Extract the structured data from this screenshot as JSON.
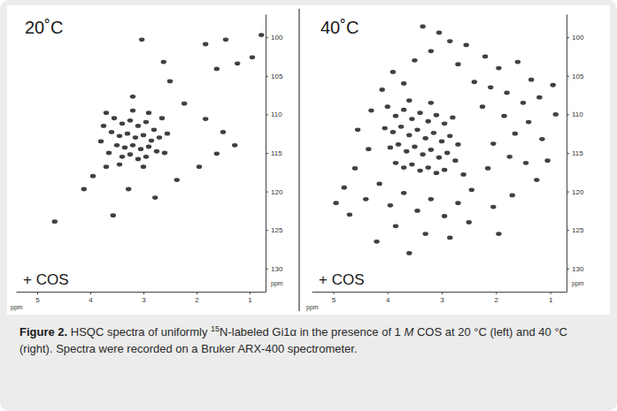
{
  "chart_data": [
    {
      "type": "scatter",
      "title": "20˚C",
      "annotations": [
        "+ COS"
      ],
      "x_label": "ppm",
      "y_label": "ppm",
      "x": [
        3.03,
        2.62,
        1.83,
        1.45,
        1.23,
        0.95,
        0.78,
        1.62,
        2.5,
        3.2,
        2.23,
        1.83,
        1.5,
        1.28,
        1.62,
        3.95,
        4.12,
        3.7,
        3.28,
        2.78,
        3.57,
        4.67,
        2.37,
        1.95,
        3.55,
        3.4,
        3.25,
        3.1,
        2.95,
        2.8,
        3.6,
        3.45,
        3.3,
        3.15,
        3.0,
        2.85,
        2.7,
        3.5,
        3.35,
        3.2,
        3.05,
        2.9,
        2.75,
        3.65,
        3.4,
        3.25,
        3.1,
        2.95,
        2.6,
        3.8,
        3.75,
        2.55,
        3.2,
        2.9,
        3.45,
        3.0,
        2.65,
        3.7
      ],
      "values": [
        100.3,
        103.2,
        100.9,
        100.3,
        103.4,
        102.6,
        99.7,
        104.1,
        105.7,
        107.7,
        108.6,
        110.6,
        112.3,
        114.0,
        115.1,
        118.0,
        119.7,
        116.8,
        119.7,
        120.8,
        123.1,
        123.9,
        118.5,
        116.8,
        110.5,
        111.2,
        110.8,
        111.5,
        111.0,
        112.0,
        112.3,
        112.8,
        112.5,
        113.0,
        112.7,
        113.4,
        113.0,
        114.0,
        114.3,
        114.0,
        114.5,
        114.2,
        114.8,
        115.0,
        115.5,
        115.2,
        115.8,
        115.5,
        115.0,
        113.5,
        111.5,
        112.5,
        109.5,
        109.8,
        116.5,
        116.8,
        110.5,
        109.8
      ],
      "xlim": [
        5.4,
        0.7
      ],
      "ylim": [
        97,
        133
      ],
      "xticks": [
        5,
        4,
        3,
        2,
        1
      ],
      "yticks": [
        100,
        105,
        110,
        115,
        120,
        125,
        130
      ],
      "color": "#262626",
      "marker": "ellipse"
    },
    {
      "type": "scatter",
      "title": "40˚C",
      "annotations": [
        "+ COS"
      ],
      "x_label": "ppm",
      "y_label": "ppm",
      "x": [
        3.35,
        3.05,
        2.85,
        3.2,
        2.55,
        2.2,
        1.95,
        1.6,
        1.35,
        2.7,
        3.5,
        3.9,
        2.4,
        2.1,
        1.8,
        1.5,
        1.2,
        0.95,
        4.1,
        3.7,
        2.25,
        1.85,
        1.4,
        1.65,
        1.15,
        2.05,
        1.75,
        1.45,
        2.15,
        4.3,
        4.55,
        4.35,
        4.6,
        4.8,
        4.95,
        4.7,
        4.4,
        4.15,
        3.95,
        3.7,
        3.45,
        3.2,
        2.95,
        2.7,
        2.45,
        3.85,
        3.3,
        2.85,
        2.5,
        2.05,
        1.7,
        1.25,
        1.05,
        0.9,
        1.95,
        4.2,
        3.6,
        4.0,
        3.85,
        3.7,
        3.55,
        3.4,
        3.25,
        3.1,
        2.95,
        2.8,
        4.05,
        3.9,
        3.75,
        3.6,
        3.45,
        3.3,
        3.15,
        3.0,
        2.85,
        2.7,
        3.95,
        3.8,
        3.65,
        3.5,
        3.35,
        3.2,
        3.05,
        2.9,
        2.75,
        3.85,
        3.7,
        3.55,
        3.4,
        3.25,
        3.1,
        2.95,
        2.6,
        3.6,
        3.2
      ],
      "values": [
        98.6,
        99.4,
        100.5,
        101.8,
        101.0,
        102.5,
        104.0,
        103.2,
        105.5,
        103.5,
        103.0,
        104.5,
        105.8,
        106.5,
        107.2,
        108.5,
        107.8,
        106.2,
        106.8,
        106.0,
        109.0,
        110.2,
        111.0,
        112.5,
        113.2,
        113.8,
        115.5,
        116.3,
        117.0,
        109.5,
        112.0,
        114.5,
        117.0,
        119.5,
        121.5,
        123.0,
        121.0,
        119.0,
        121.8,
        120.2,
        122.5,
        121.0,
        123.2,
        121.5,
        119.8,
        124.5,
        125.5,
        126.0,
        124.0,
        122.0,
        120.5,
        118.5,
        116.0,
        110.0,
        125.5,
        126.5,
        128.0,
        109.0,
        110.2,
        109.4,
        110.6,
        109.8,
        110.9,
        110.1,
        111.2,
        110.4,
        111.8,
        112.3,
        111.6,
        112.7,
        112.0,
        113.1,
        112.4,
        113.5,
        112.8,
        113.9,
        114.3,
        113.9,
        114.8,
        114.2,
        115.2,
        114.6,
        115.6,
        115.0,
        116.0,
        116.3,
        116.9,
        116.5,
        117.3,
        116.9,
        117.6,
        117.2,
        117.8,
        108.2,
        108.5
      ],
      "xlim": [
        5.4,
        0.7
      ],
      "ylim": [
        97,
        133
      ],
      "xticks": [
        5,
        4,
        3,
        2,
        1
      ],
      "yticks": [
        100,
        105,
        110,
        115,
        120,
        125,
        130
      ],
      "color": "#262626",
      "marker": "ellipse"
    }
  ],
  "caption": {
    "label": "Figure 2.",
    "runs": [
      {
        "text": " HSQC spectra of uniformly "
      },
      {
        "text": "15",
        "sup": true
      },
      {
        "text": "N-labeled Gi1α in the presence of 1 "
      },
      {
        "text": "M",
        "italic": true
      },
      {
        "text": " COS at 20 °C (left) and 40 °C (right). Spectra were recorded on a Bruker ARX-400 spectrometer."
      }
    ]
  }
}
